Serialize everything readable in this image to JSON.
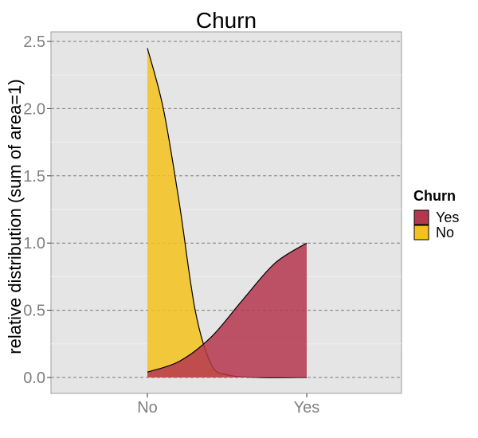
{
  "chart_data": {
    "type": "area",
    "title": "Churn",
    "xlabel": "",
    "ylabel": "relative distribution (sum of area=1)",
    "x_categories": [
      "No",
      "Yes"
    ],
    "y_ticks": [
      "0.0",
      "0.5",
      "1.0",
      "1.5",
      "2.0",
      "2.5"
    ],
    "ylim": [
      0,
      2.5
    ],
    "grid": true,
    "legend": {
      "title": "Churn",
      "placement": "right",
      "entries": [
        {
          "label": "Yes",
          "color": "#b5374f"
        },
        {
          "label": "No",
          "color": "#f5c21b"
        }
      ]
    },
    "series": [
      {
        "name": "No",
        "color": "#f5c21b",
        "points": [
          [
            0,
            2.45
          ],
          [
            0.1,
            2.0
          ],
          [
            0.2,
            1.3
          ],
          [
            0.3,
            0.5
          ],
          [
            0.4,
            0.1
          ],
          [
            0.5,
            0.02
          ],
          [
            0.7,
            0.0
          ],
          [
            1.0,
            0.0
          ]
        ]
      },
      {
        "name": "Yes",
        "color": "#b5374f",
        "points": [
          [
            0,
            0.04
          ],
          [
            0.2,
            0.12
          ],
          [
            0.4,
            0.3
          ],
          [
            0.6,
            0.58
          ],
          [
            0.8,
            0.85
          ],
          [
            1.0,
            1.0
          ]
        ]
      }
    ]
  }
}
